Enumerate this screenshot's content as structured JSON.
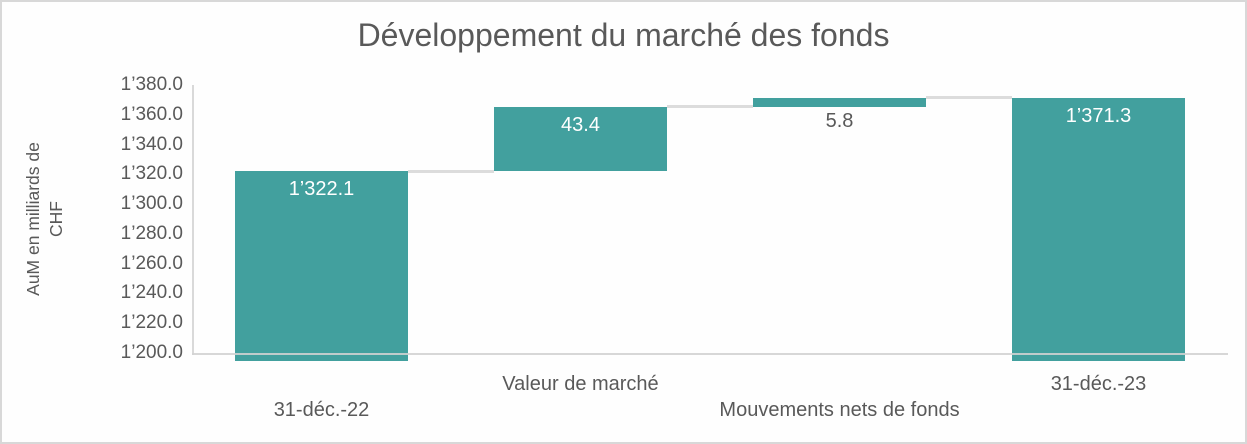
{
  "chart_data": {
    "type": "waterfall",
    "title": "Développement du marché des fonds",
    "ylabel": "AuM en milliards de\nCHF",
    "xlabel": "",
    "grid": false,
    "legend": null,
    "y_axis": {
      "min": 1200,
      "max": 1380,
      "tick_step": 20,
      "tick_labels": [
        "1’380.0",
        "1’360.0",
        "1’340.0",
        "1’320.0",
        "1’300.0",
        "1’280.0",
        "1’260.0",
        "1’240.0",
        "1’220.0",
        "1’200.0"
      ]
    },
    "bars": [
      {
        "category": "31-déc.-22",
        "category_row": 2,
        "kind": "total",
        "value": 1322.1,
        "label": "1’322.1",
        "label_placement": "inside"
      },
      {
        "category": "Valeur de marché",
        "category_row": 1,
        "kind": "delta",
        "value": 43.4,
        "label": "43.4",
        "label_placement": "inside"
      },
      {
        "category": "Mouvements nets de fonds",
        "category_row": 2,
        "kind": "delta",
        "value": 5.8,
        "label": "5.8",
        "label_placement": "below"
      },
      {
        "category": "31-déc.-23",
        "category_row": 1,
        "kind": "total",
        "value": 1371.3,
        "label": "1’371.3",
        "label_placement": "inside"
      }
    ],
    "colors": {
      "bar_fill": "#42a09e",
      "title_text": "#595959",
      "axis_text": "#595959",
      "label_on_bar": "#ffffff",
      "label_outside": "#595959",
      "axis_line": "#d9d9d9",
      "connector_line": "#dcdcdc",
      "border": "#d8d8d8"
    }
  }
}
